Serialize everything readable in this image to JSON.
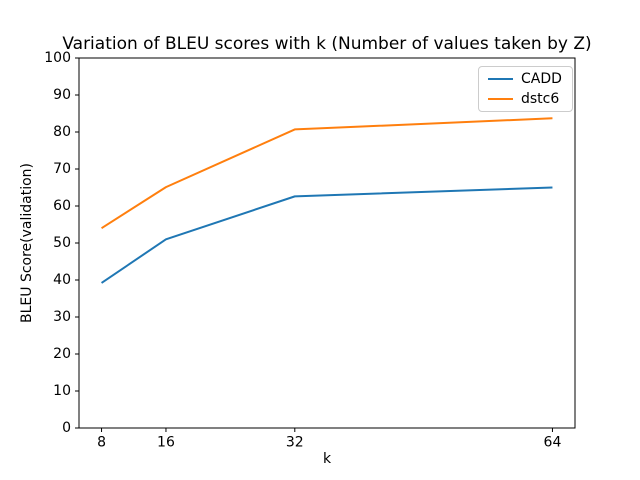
{
  "chart_data": {
    "type": "line",
    "title": "Variation of BLEU scores with k (Number of values taken by Z)",
    "xlabel": "k",
    "ylabel": "BLEU Score(validation)",
    "x": [
      8,
      16,
      32,
      64
    ],
    "x_tick_labels": [
      "8",
      "16",
      "32",
      "64"
    ],
    "y_ticks": [
      0,
      10,
      20,
      30,
      40,
      50,
      60,
      70,
      80,
      90,
      100
    ],
    "xlim": [
      5.2,
      66.8
    ],
    "ylim": [
      0,
      100
    ],
    "grid": false,
    "legend_position": "upper right",
    "series": [
      {
        "name": "CADD",
        "color": "#1f77b4",
        "values": [
          39.2,
          51.0,
          62.6,
          65.0
        ]
      },
      {
        "name": "dstc6",
        "color": "#ff7f0e",
        "values": [
          54.0,
          65.1,
          80.7,
          83.7
        ]
      }
    ]
  }
}
